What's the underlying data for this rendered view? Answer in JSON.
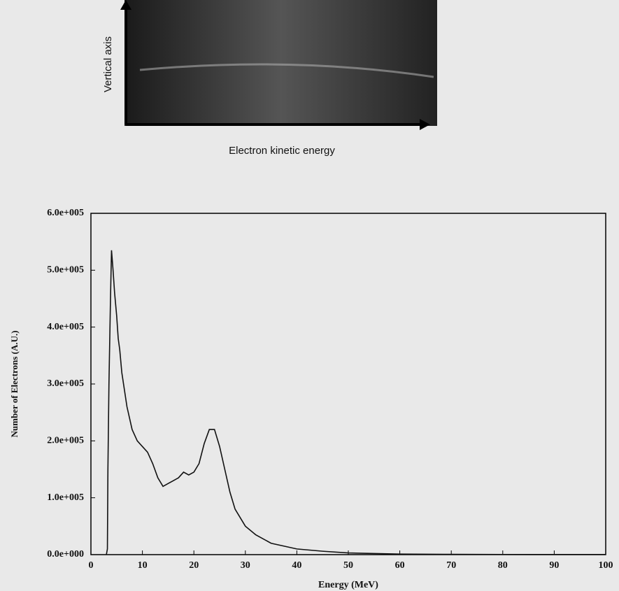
{
  "chart_data": {
    "type": "line",
    "inset": {
      "y_label": "Vertical axis",
      "x_label": "Electron kinetic energy"
    },
    "x_label": "Energy (MeV)",
    "y_label": "Number of Electrons (A.U.)",
    "x": [
      3.0,
      3.2,
      3.3,
      3.5,
      3.8,
      4.0,
      4.3,
      4.6,
      5.0,
      5.3,
      5.6,
      6,
      7,
      8,
      9,
      10,
      11,
      12,
      13,
      14,
      15,
      16,
      17,
      18,
      19,
      20,
      21,
      22,
      23,
      24,
      25,
      26,
      27,
      28,
      30,
      32,
      35,
      40,
      45,
      50,
      60,
      70,
      80,
      100
    ],
    "values": [
      0,
      10000,
      150000,
      300000,
      450000,
      535000,
      500000,
      460000,
      420000,
      380000,
      360000,
      320000,
      260000,
      220000,
      200000,
      190000,
      180000,
      160000,
      135000,
      120000,
      125000,
      130000,
      135000,
      145000,
      140000,
      145000,
      160000,
      195000,
      220000,
      220000,
      190000,
      150000,
      110000,
      80000,
      50000,
      35000,
      20000,
      10000,
      6000,
      3000,
      1000,
      500,
      300,
      200
    ],
    "color": "#111111",
    "xlim": [
      0,
      100
    ],
    "xticks": [
      0,
      10,
      20,
      30,
      40,
      50,
      60,
      70,
      80,
      90,
      100
    ],
    "ylim": [
      0,
      600000
    ],
    "yticks": [
      {
        "value": 0,
        "label": "0.0e+000"
      },
      {
        "value": 100000,
        "label": "1.0e+005"
      },
      {
        "value": 200000,
        "label": "2.0e+005"
      },
      {
        "value": 300000,
        "label": "3.0e+005"
      },
      {
        "value": 400000,
        "label": "4.0e+005"
      },
      {
        "value": 500000,
        "label": "5.0e+005"
      },
      {
        "value": 600000,
        "label": "6.0e+005"
      }
    ]
  }
}
